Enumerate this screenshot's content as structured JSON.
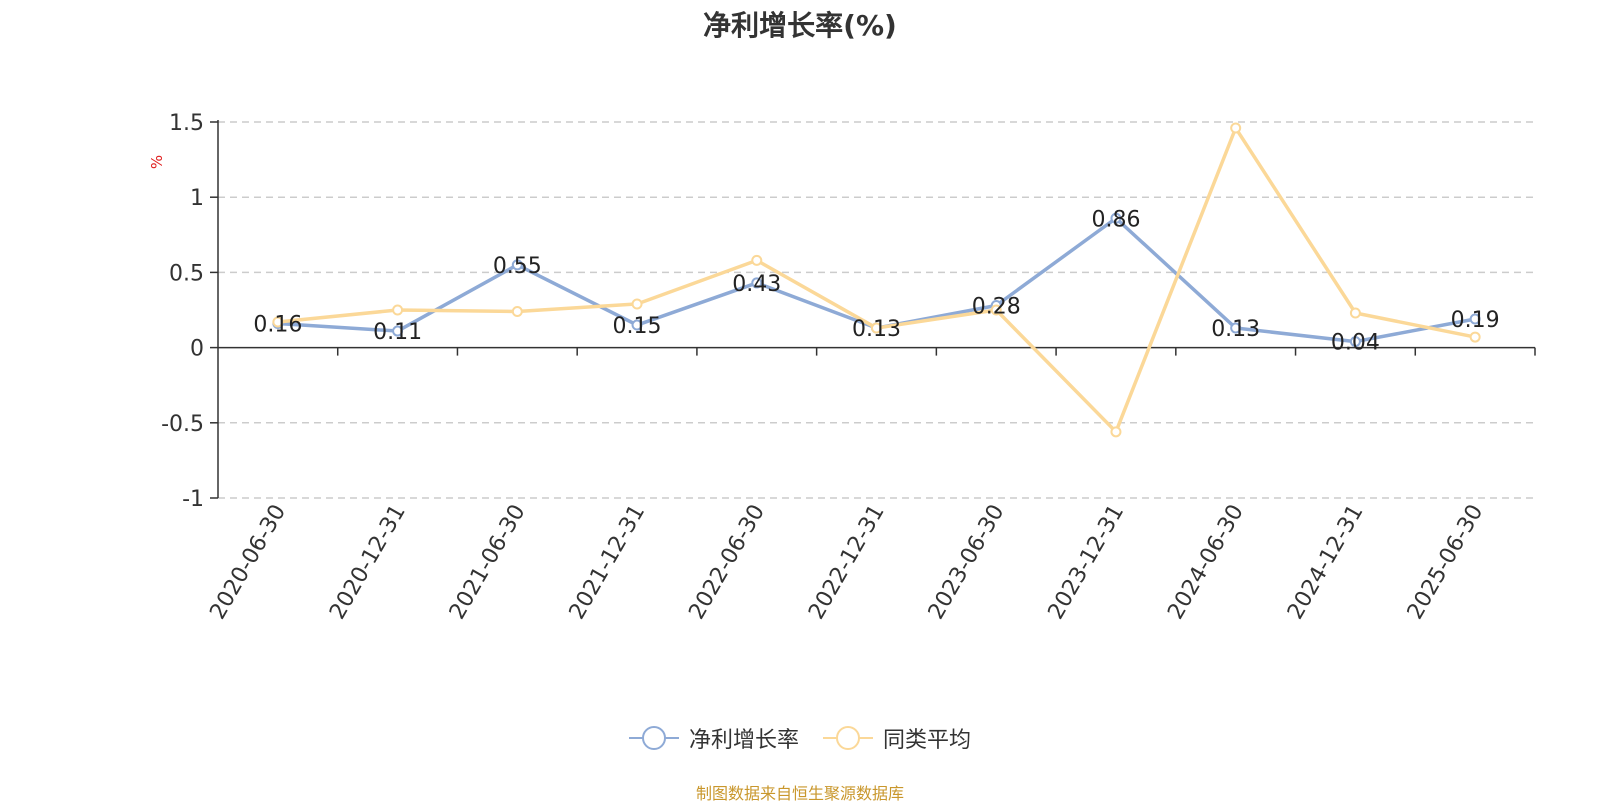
{
  "chart_data": {
    "type": "line",
    "title": "净利增长率(%)",
    "ylabel": "%",
    "xlabel": "",
    "ylim": [
      -1,
      1.5
    ],
    "yticks": [
      "1.5",
      "1",
      "0.5",
      "0",
      "-0.5",
      "-1"
    ],
    "ytick_values": [
      1.5,
      1,
      0.5,
      0,
      -0.5,
      -1
    ],
    "grid": true,
    "legend_position": "bottom",
    "categories": [
      "2020-06-30",
      "2020-12-31",
      "2021-06-30",
      "2021-12-31",
      "2022-06-30",
      "2022-12-31",
      "2023-06-30",
      "2023-12-31",
      "2024-06-30",
      "2024-12-31",
      "2025-06-30"
    ],
    "series": [
      {
        "name": "净利增长率",
        "color": "#8eaad6",
        "values": [
          0.16,
          0.11,
          0.55,
          0.15,
          0.43,
          0.13,
          0.28,
          0.86,
          0.13,
          0.04,
          0.19
        ],
        "labels": [
          "0.16",
          "0.11",
          "0.55",
          "0.15",
          "0.43",
          "0.13",
          "0.28",
          "0.86",
          "0.13",
          "0.04",
          "0.19"
        ]
      },
      {
        "name": "同类平均",
        "color": "#fbd898",
        "values": [
          0.17,
          0.25,
          0.24,
          0.29,
          0.58,
          0.13,
          0.25,
          -0.56,
          1.46,
          0.23,
          0.07
        ]
      }
    ]
  },
  "source_note": "制图数据来自恒生聚源数据库"
}
